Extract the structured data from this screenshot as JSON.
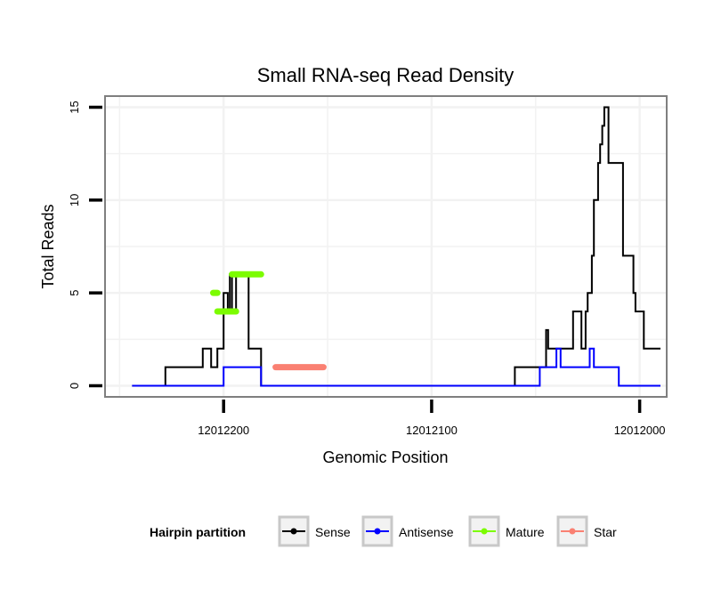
{
  "chart_data": {
    "type": "line",
    "title": "Small RNA-seq Read Density",
    "xlabel": "Genomic Position",
    "ylabel": "Total Reads",
    "x_reversed": true,
    "xlim": [
      12012257,
      12011987
    ],
    "ylim": [
      -0.6,
      15.6
    ],
    "x_ticks": [
      12012200,
      12012100,
      12012000
    ],
    "x_tick_labels": [
      "12012200",
      "12012100",
      "12012000"
    ],
    "y_ticks": [
      0,
      5,
      10,
      15
    ],
    "y_tick_labels": [
      "0",
      "5",
      "10",
      "15"
    ],
    "grid": true,
    "legend": {
      "title": "Hairpin partition",
      "position": "bottom",
      "entries": [
        {
          "label": "Sense",
          "color": "#000000"
        },
        {
          "label": "Antisense",
          "color": "#0000ff"
        },
        {
          "label": "Mature",
          "color": "#7cfc00"
        },
        {
          "label": "Star",
          "color": "#fa8072"
        }
      ]
    },
    "series": [
      {
        "name": "Sense",
        "color": "#000000",
        "style": "line",
        "x": [
          12012244,
          12012228,
          12012228,
          12012210,
          12012210,
          12012206,
          12012206,
          12012203,
          12012203,
          12012200,
          12012200,
          12012198,
          12012198,
          12012197,
          12012197,
          12012196,
          12012196,
          12012194,
          12012194,
          12012188,
          12012188,
          12012182,
          12012182,
          12012170,
          12012170,
          12012162,
          12012162,
          12012060,
          12012060,
          12012045,
          12012045,
          12012044,
          12012044,
          12012032,
          12012032,
          12012028,
          12012028,
          12012026,
          12012026,
          12012025,
          12012025,
          12012023,
          12012023,
          12012022,
          12012022,
          12012020,
          12012020,
          12012019,
          12012019,
          12012018,
          12012018,
          12012017,
          12012017,
          12012016,
          12012016,
          12012015,
          12012015,
          12012013,
          12012013,
          12012012,
          12012012,
          12012008,
          12012008,
          12012003,
          12012003,
          12012002,
          12012002,
          12011998,
          12011998,
          12011997,
          12011997,
          12011995,
          12011995,
          12011990
        ],
        "y": [
          0,
          0,
          1,
          1,
          2,
          2,
          1,
          1,
          2,
          2,
          5,
          5,
          4,
          4,
          6,
          6,
          4,
          4,
          6,
          6,
          2,
          2,
          0,
          0,
          0,
          0,
          0,
          0,
          1,
          1,
          3,
          3,
          2,
          2,
          4,
          4,
          2,
          2,
          4,
          4,
          5,
          5,
          7,
          7,
          10,
          10,
          12,
          12,
          13,
          13,
          14,
          14,
          15,
          15,
          15,
          15,
          12,
          12,
          12,
          12,
          12,
          12,
          7,
          7,
          5,
          5,
          4,
          4,
          2,
          2,
          2,
          2,
          2,
          2
        ]
      },
      {
        "name": "Antisense",
        "color": "#0000ff",
        "style": "line",
        "x": [
          12012244,
          12012200,
          12012200,
          12012182,
          12012182,
          12012162,
          12012162,
          12012048,
          12012048,
          12012040,
          12012040,
          12012038,
          12012038,
          12012032,
          12012032,
          12012030,
          12012030,
          12012024,
          12012024,
          12012022,
          12012022,
          12012016,
          12012016,
          12012010,
          12012010,
          12011990
        ],
        "y": [
          0,
          0,
          1,
          1,
          0,
          0,
          0,
          0,
          1,
          1,
          2,
          2,
          1,
          1,
          1,
          1,
          1,
          1,
          2,
          2,
          1,
          1,
          1,
          1,
          0,
          0
        ]
      },
      {
        "name": "Mature",
        "color": "#7cfc00",
        "style": "segments",
        "segments": [
          {
            "x": [
              12012205,
              12012203
            ],
            "y": 5
          },
          {
            "x": [
              12012203,
              12012194
            ],
            "y": 4
          },
          {
            "x": [
              12012196,
              12012182
            ],
            "y": 6
          }
        ]
      },
      {
        "name": "Star",
        "color": "#fa8072",
        "style": "segments",
        "segments": [
          {
            "x": [
              12012175,
              12012152
            ],
            "y": 1
          }
        ]
      }
    ]
  }
}
